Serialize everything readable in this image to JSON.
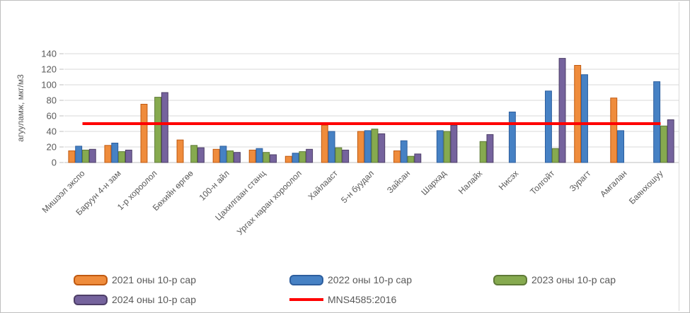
{
  "chart_data": {
    "type": "bar",
    "title": "",
    "ylabel": "агууламж,  мкг/м3",
    "xlabel": "",
    "ylim": [
      0,
      140
    ],
    "yticks": [
      0,
      20,
      40,
      60,
      80,
      100,
      120,
      140
    ],
    "grid": true,
    "legend_position": "bottom",
    "categories": [
      "Мишээл экспо",
      "Баруун 4-н зам",
      "1-р хороолол",
      "Бөхийн өргөө",
      "100-н айл",
      "Цахилгаан станц",
      "Ургах наран хороолол",
      "Хайлааст",
      "5-н буудал",
      "Зайсан",
      "Шархад",
      "Налайх",
      "Нисэх",
      "Толгойт",
      "Зурагт",
      "Амгалан",
      "Баянхошуу"
    ],
    "series": [
      {
        "name": "2021 оны 10-р сар",
        "color": "#EF8C3C",
        "border": "#C05A11",
        "values": [
          15,
          22,
          75,
          29,
          17,
          16,
          8,
          48,
          40,
          15,
          null,
          null,
          null,
          null,
          125,
          83,
          null
        ]
      },
      {
        "name": "2022 оны 10-р сар",
        "color": "#4681C4",
        "border": "#2D5E9E",
        "values": [
          21,
          25,
          null,
          null,
          21,
          18,
          12,
          40,
          41,
          28,
          41,
          null,
          65,
          92,
          113,
          41,
          104
        ]
      },
      {
        "name": "2023 оны 10-р сар",
        "color": "#86AA4F",
        "border": "#5F7A38",
        "values": [
          16,
          14,
          84,
          22,
          15,
          13,
          14,
          19,
          43,
          8,
          40,
          27,
          null,
          18,
          null,
          null,
          47
        ]
      },
      {
        "name": "2024 оны 10-р сар",
        "color": "#75639D",
        "border": "#4E3F68",
        "values": [
          17,
          16,
          90,
          19,
          13,
          10,
          17,
          16,
          37,
          11,
          48,
          36,
          null,
          134,
          null,
          null,
          55
        ]
      }
    ],
    "ref_line": {
      "name": "MNS4585:2016",
      "value": 50,
      "color": "#FF0000"
    }
  },
  "style": {
    "text_color": "#595959",
    "grid_color": "#d9d9d9",
    "axis_color": "#bfbfbf"
  }
}
